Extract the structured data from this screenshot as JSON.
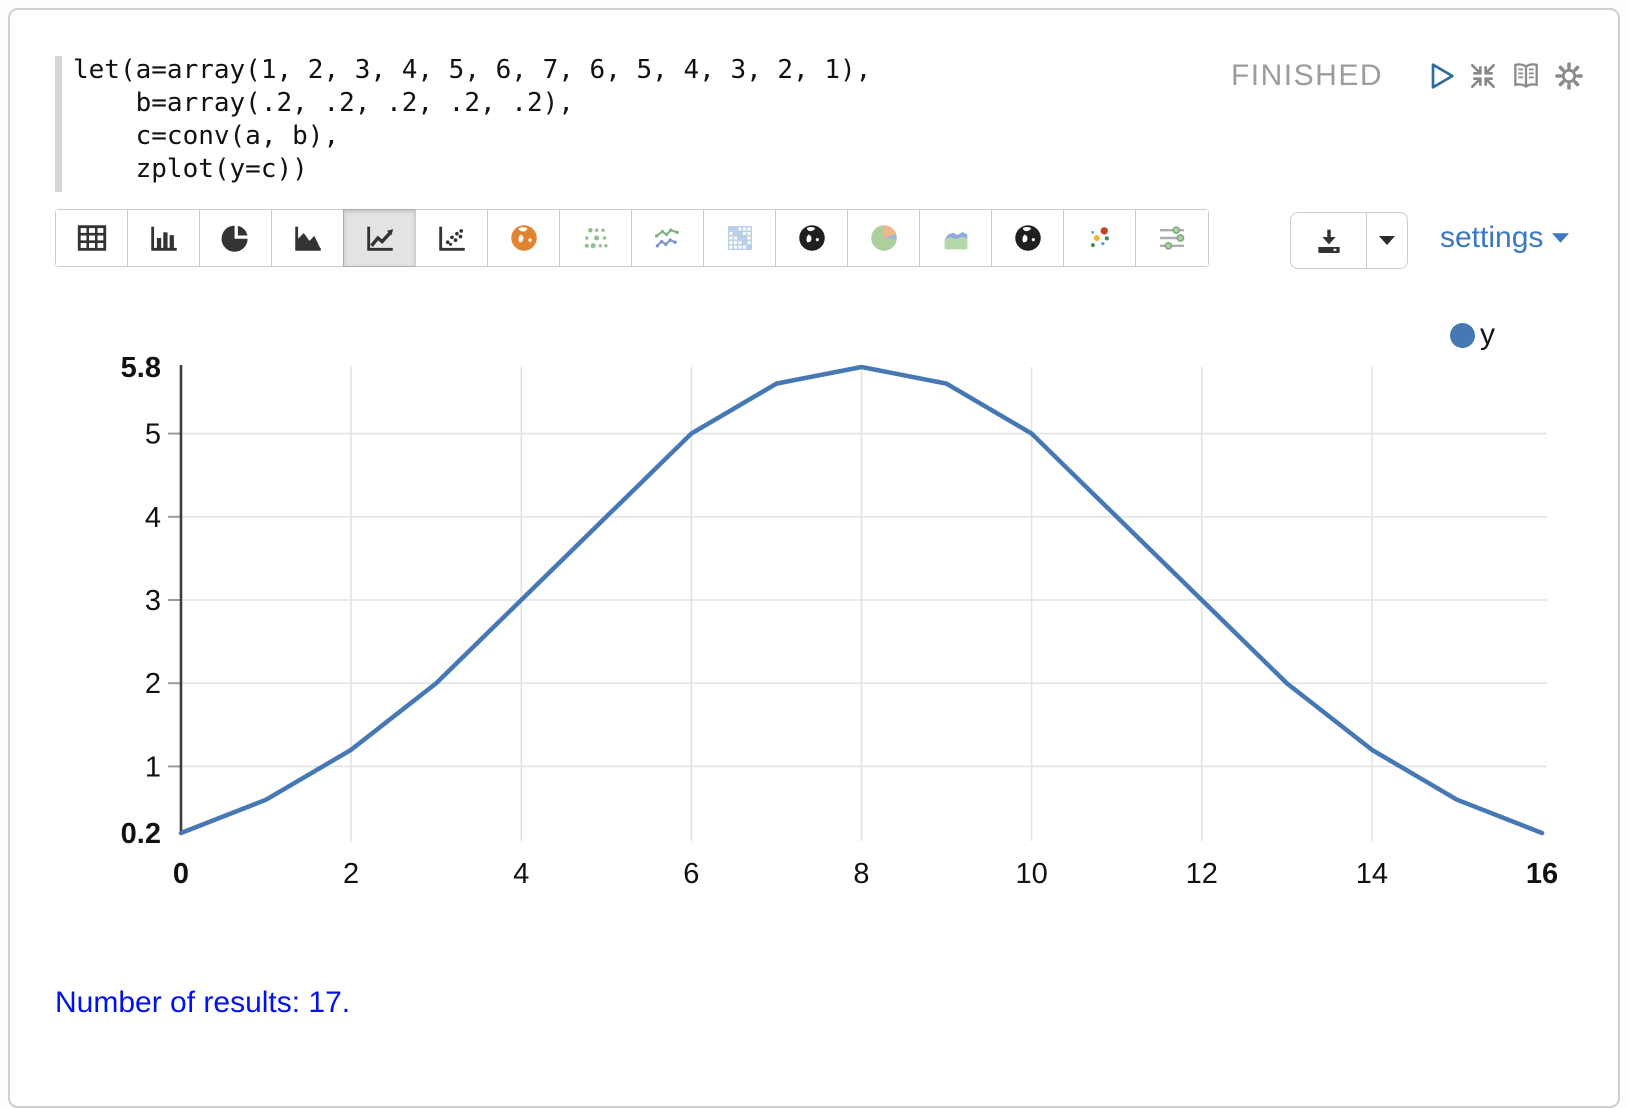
{
  "colors": {
    "accent_blue": "#3a78c2",
    "series_blue": "#4678b4",
    "status_gray": "#9c9c9c",
    "link_blue": "#0013ee",
    "grid_gray": "#e3e3e3",
    "axis_dark": "#3d3d3d"
  },
  "editor": {
    "code_lines": [
      "let(a=array(1, 2, 3, 4, 5, 6, 7, 6, 5, 4, 3, 2, 1),",
      "    b=array(.2, .2, .2, .2, .2),",
      "    c=conv(a, b),",
      "    zplot(y=c))"
    ],
    "status": "FINISHED",
    "header_icons": [
      "play-icon",
      "compress-icon",
      "book-icon",
      "gear-icon"
    ]
  },
  "toolbar": {
    "buttons": [
      {
        "name": "table",
        "selected": false
      },
      {
        "name": "bar-chart",
        "selected": false
      },
      {
        "name": "pie-chart",
        "selected": false
      },
      {
        "name": "area-chart",
        "selected": false
      },
      {
        "name": "line-chart",
        "selected": true
      },
      {
        "name": "scatter-chart",
        "selected": false
      },
      {
        "name": "globe-orange",
        "selected": false
      },
      {
        "name": "dot-grid",
        "selected": false
      },
      {
        "name": "multi-line-chart",
        "selected": false
      },
      {
        "name": "matrix-chart",
        "selected": false
      },
      {
        "name": "globe-dark",
        "selected": false
      },
      {
        "name": "pie-colored",
        "selected": false
      },
      {
        "name": "stacked-area",
        "selected": false
      },
      {
        "name": "globe-dark-2",
        "selected": false
      },
      {
        "name": "bubble-chart",
        "selected": false
      },
      {
        "name": "interval-slider",
        "selected": false
      }
    ],
    "download_icon": "download-icon",
    "settings_label": "settings"
  },
  "chart_data": {
    "type": "line",
    "x": [
      0,
      1,
      2,
      3,
      4,
      5,
      6,
      7,
      8,
      9,
      10,
      11,
      12,
      13,
      14,
      15,
      16
    ],
    "series": [
      {
        "name": "y",
        "values": [
          0.2,
          0.6,
          1.2,
          2,
          3,
          4,
          5,
          5.6,
          5.8,
          5.6,
          5,
          4,
          3,
          2,
          1.2,
          0.6,
          0.2
        ],
        "color": "#4678b4"
      }
    ],
    "xlim": [
      0,
      16
    ],
    "ylim": [
      0.2,
      5.8
    ],
    "x_ticks": [
      0,
      2,
      4,
      6,
      8,
      10,
      12,
      14,
      16
    ],
    "y_ticks": [
      0.2,
      1,
      2,
      3,
      4,
      5,
      5.8
    ],
    "x_gridlines": [
      2,
      4,
      6,
      8,
      10,
      12,
      14
    ],
    "y_gridlines": [
      1,
      2,
      3,
      4,
      5
    ],
    "grid": true,
    "legend_position": "top-right",
    "legend": [
      {
        "label": "y",
        "color": "#4678b4"
      }
    ],
    "title": "",
    "xlabel": "",
    "ylabel": ""
  },
  "footer": {
    "results_text": "Number of results: 17."
  }
}
